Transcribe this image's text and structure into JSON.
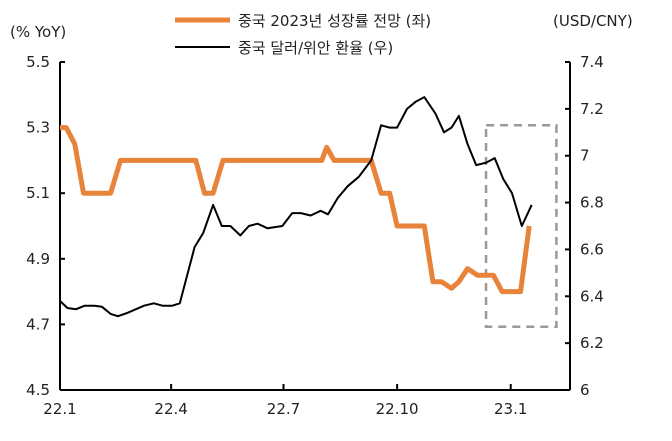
{
  "chart_data": {
    "type": "line",
    "left_axis": {
      "label": "(% YoY)",
      "range": [
        4.5,
        5.5
      ],
      "ticks": [
        "4.5",
        "4.7",
        "4.9",
        "5.1",
        "5.3",
        "5.5"
      ],
      "tick_values": [
        4.5,
        4.7,
        4.9,
        5.1,
        5.3,
        5.5
      ]
    },
    "right_axis": {
      "label": "(USD/CNY)",
      "range": [
        6.0,
        7.4
      ],
      "ticks": [
        "6",
        "6.2",
        "6.4",
        "6.6",
        "6.8",
        "7",
        "7.2",
        "7.4"
      ],
      "tick_values": [
        6.0,
        6.2,
        6.4,
        6.6,
        6.8,
        7.0,
        7.2,
        7.4
      ]
    },
    "x_axis": {
      "range": [
        "2022-01-01",
        "2023-02-18"
      ],
      "ticks": [
        "22.1",
        "22.4",
        "22.7",
        "22.10",
        "23.1"
      ],
      "tick_dates": [
        "2022-01-01",
        "2022-04-01",
        "2022-07-01",
        "2022-10-01",
        "2023-01-01"
      ]
    },
    "grid": false,
    "legend": "top-center",
    "series": [
      {
        "name": "중국 2023년 성장률 전망 (좌)",
        "axis": "left",
        "color": "#E8833A",
        "points": [
          [
            "2022-01-01",
            5.3
          ],
          [
            "2022-01-06",
            5.3
          ],
          [
            "2022-01-13",
            5.25
          ],
          [
            "2022-01-20",
            5.1
          ],
          [
            "2022-02-11",
            5.1
          ],
          [
            "2022-02-19",
            5.2
          ],
          [
            "2022-04-21",
            5.2
          ],
          [
            "2022-04-28",
            5.1
          ],
          [
            "2022-05-05",
            5.1
          ],
          [
            "2022-05-13",
            5.2
          ],
          [
            "2022-08-01",
            5.2
          ],
          [
            "2022-08-05",
            5.24
          ],
          [
            "2022-08-11",
            5.2
          ],
          [
            "2022-09-10",
            5.2
          ],
          [
            "2022-09-18",
            5.1
          ],
          [
            "2022-09-25",
            5.1
          ],
          [
            "2022-10-01",
            5.0
          ],
          [
            "2022-10-23",
            5.0
          ],
          [
            "2022-10-30",
            4.83
          ],
          [
            "2022-11-06",
            4.83
          ],
          [
            "2022-11-14",
            4.81
          ],
          [
            "2022-11-20",
            4.83
          ],
          [
            "2022-11-27",
            4.87
          ],
          [
            "2022-12-05",
            4.85
          ],
          [
            "2022-12-18",
            4.85
          ],
          [
            "2022-12-25",
            4.8
          ],
          [
            "2023-01-09",
            4.8
          ],
          [
            "2023-01-16",
            5.0
          ]
        ]
      },
      {
        "name": "중국 달러/위안 환율 (우)",
        "axis": "right",
        "color": "#000000",
        "points": [
          [
            "2022-01-01",
            6.38
          ],
          [
            "2022-01-07",
            6.35
          ],
          [
            "2022-01-14",
            6.345
          ],
          [
            "2022-01-21",
            6.36
          ],
          [
            "2022-01-29",
            6.36
          ],
          [
            "2022-02-04",
            6.355
          ],
          [
            "2022-02-11",
            6.325
          ],
          [
            "2022-02-17",
            6.315
          ],
          [
            "2022-02-25",
            6.33
          ],
          [
            "2022-03-10",
            6.36
          ],
          [
            "2022-03-18",
            6.37
          ],
          [
            "2022-03-25",
            6.36
          ],
          [
            "2022-04-02",
            6.36
          ],
          [
            "2022-04-08",
            6.37
          ],
          [
            "2022-04-20",
            6.61
          ],
          [
            "2022-04-27",
            6.67
          ],
          [
            "2022-05-05",
            6.79
          ],
          [
            "2022-05-12",
            6.7
          ],
          [
            "2022-05-19",
            6.7
          ],
          [
            "2022-05-27",
            6.66
          ],
          [
            "2022-06-03",
            6.7
          ],
          [
            "2022-06-10",
            6.71
          ],
          [
            "2022-06-18",
            6.69
          ],
          [
            "2022-06-30",
            6.7
          ],
          [
            "2022-07-08",
            6.755
          ],
          [
            "2022-07-15",
            6.755
          ],
          [
            "2022-07-23",
            6.745
          ],
          [
            "2022-07-31",
            6.765
          ],
          [
            "2022-08-06",
            6.75
          ],
          [
            "2022-08-14",
            6.82
          ],
          [
            "2022-08-22",
            6.87
          ],
          [
            "2022-08-31",
            6.91
          ],
          [
            "2022-09-10",
            6.98
          ],
          [
            "2022-09-18",
            7.13
          ],
          [
            "2022-09-25",
            7.12
          ],
          [
            "2022-10-01",
            7.12
          ],
          [
            "2022-10-09",
            7.2
          ],
          [
            "2022-10-16",
            7.23
          ],
          [
            "2022-10-23",
            7.25
          ],
          [
            "2022-11-01",
            7.18
          ],
          [
            "2022-11-08",
            7.1
          ],
          [
            "2022-11-14",
            7.12
          ],
          [
            "2022-11-20",
            7.17
          ],
          [
            "2022-11-27",
            7.05
          ],
          [
            "2022-12-04",
            6.96
          ],
          [
            "2022-12-12",
            6.97
          ],
          [
            "2022-12-19",
            6.99
          ],
          [
            "2022-12-26",
            6.9
          ],
          [
            "2023-01-02",
            6.84
          ],
          [
            "2023-01-10",
            6.7
          ],
          [
            "2023-01-18",
            6.79
          ]
        ]
      }
    ],
    "annotations": [
      {
        "type": "dashed-box",
        "color": "#999999",
        "x_range": [
          "2022-12-12",
          "2023-02-07"
        ],
        "right_axis_range": [
          6.27,
          7.13
        ]
      }
    ]
  }
}
